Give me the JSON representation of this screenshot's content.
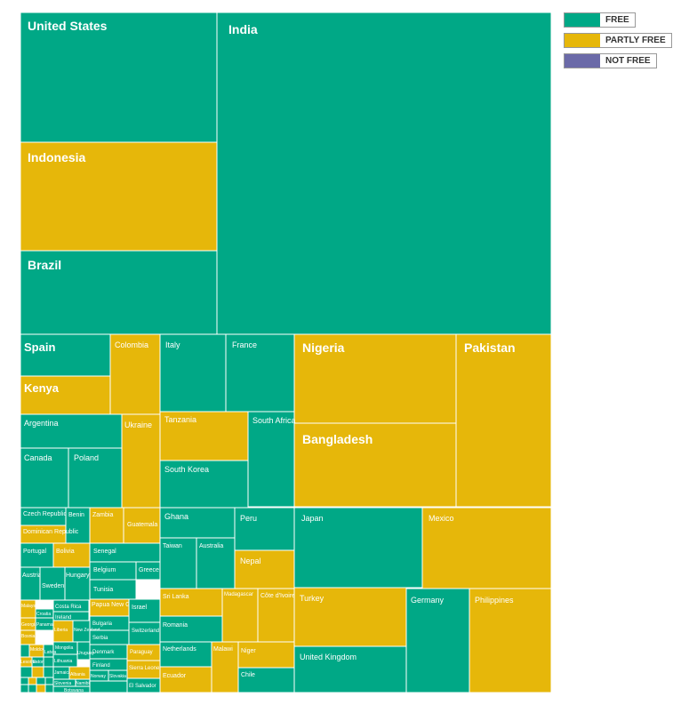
{
  "chart_data": {
    "type": "treemap",
    "title": "",
    "legend": [
      {
        "status": "free",
        "label": "FREE",
        "color": "#00a886"
      },
      {
        "status": "partly",
        "label": "PARTLY FREE",
        "color": "#e6b70a"
      },
      {
        "status": "not",
        "label": "NOT FREE",
        "color": "#6b6aa8"
      }
    ],
    "colors": {
      "free": "#00a886",
      "partly": "#e6b70a",
      "not": "#6b6aa8"
    },
    "items": [
      {
        "name": "United States",
        "status": "free"
      },
      {
        "name": "India",
        "status": "free"
      },
      {
        "name": "Indonesia",
        "status": "partly"
      },
      {
        "name": "Brazil",
        "status": "free"
      },
      {
        "name": "Spain",
        "status": "free"
      },
      {
        "name": "Colombia",
        "status": "partly"
      },
      {
        "name": "Italy",
        "status": "free"
      },
      {
        "name": "France",
        "status": "free"
      },
      {
        "name": "Nigeria",
        "status": "partly"
      },
      {
        "name": "Pakistan",
        "status": "partly"
      },
      {
        "name": "Kenya",
        "status": "partly"
      },
      {
        "name": "Tanzania",
        "status": "partly"
      },
      {
        "name": "South Africa",
        "status": "free"
      },
      {
        "name": "Argentina",
        "status": "free"
      },
      {
        "name": "Ukraine",
        "status": "partly"
      },
      {
        "name": "Bangladesh",
        "status": "partly"
      },
      {
        "name": "Canada",
        "status": "free"
      },
      {
        "name": "Poland",
        "status": "free"
      },
      {
        "name": "South Korea",
        "status": "free"
      },
      {
        "name": "Czech Republic",
        "status": "free"
      },
      {
        "name": "Benin",
        "status": "free"
      },
      {
        "name": "Zambia",
        "status": "partly"
      },
      {
        "name": "Guatemala",
        "status": "partly"
      },
      {
        "name": "Dominican Republic",
        "status": "partly"
      },
      {
        "name": "Ghana",
        "status": "free"
      },
      {
        "name": "Peru",
        "status": "free"
      },
      {
        "name": "Japan",
        "status": "free"
      },
      {
        "name": "Mexico",
        "status": "partly"
      },
      {
        "name": "Taiwan",
        "status": "free"
      },
      {
        "name": "Australia",
        "status": "free"
      },
      {
        "name": "Nepal",
        "status": "partly"
      },
      {
        "name": "Portugal",
        "status": "free"
      },
      {
        "name": "Bolivia",
        "status": "partly"
      },
      {
        "name": "Senegal",
        "status": "free"
      },
      {
        "name": "Belgium",
        "status": "free"
      },
      {
        "name": "Greece",
        "status": "free"
      },
      {
        "name": "Austria",
        "status": "free"
      },
      {
        "name": "Sweden",
        "status": "free"
      },
      {
        "name": "Hungary",
        "status": "free"
      },
      {
        "name": "Tunisia",
        "status": "free"
      },
      {
        "name": "Sri Lanka",
        "status": "partly"
      },
      {
        "name": "Madagascar",
        "status": "partly"
      },
      {
        "name": "Côte d'Ivoire",
        "status": "partly"
      },
      {
        "name": "Turkey",
        "status": "partly"
      },
      {
        "name": "Germany",
        "status": "free"
      },
      {
        "name": "Philippines",
        "status": "partly"
      },
      {
        "name": "Malaysia",
        "status": "partly"
      },
      {
        "name": "Costa Rica",
        "status": "free"
      },
      {
        "name": "Croatia",
        "status": "free"
      },
      {
        "name": "Ireland",
        "status": "free"
      },
      {
        "name": "Papua New Guinea",
        "status": "partly"
      },
      {
        "name": "Israel",
        "status": "free"
      },
      {
        "name": "Georgia",
        "status": "partly"
      },
      {
        "name": "Panama",
        "status": "free"
      },
      {
        "name": "Bulgaria",
        "status": "free"
      },
      {
        "name": "Switzerland",
        "status": "free"
      },
      {
        "name": "Bosnia-Herz.",
        "status": "partly"
      },
      {
        "name": "Liberia",
        "status": "partly"
      },
      {
        "name": "New Zealand",
        "status": "free"
      },
      {
        "name": "Serbia",
        "status": "free"
      },
      {
        "name": "Romania",
        "status": "free"
      },
      {
        "name": "Mongolia",
        "status": "free"
      },
      {
        "name": "Denmark",
        "status": "free"
      },
      {
        "name": "Paraguay",
        "status": "partly"
      },
      {
        "name": "Moldova",
        "status": "partly"
      },
      {
        "name": "Latvia",
        "status": "free"
      },
      {
        "name": "Jamaica",
        "status": "free"
      },
      {
        "name": "Uruguay",
        "status": "free"
      },
      {
        "name": "Netherlands",
        "status": "free"
      },
      {
        "name": "Malawi",
        "status": "partly"
      },
      {
        "name": "Niger",
        "status": "partly"
      },
      {
        "name": "United Kingdom",
        "status": "free"
      },
      {
        "name": "Lithuania",
        "status": "free"
      },
      {
        "name": "Estonia",
        "status": "free"
      },
      {
        "name": "Lesotho",
        "status": "partly"
      },
      {
        "name": "Finland",
        "status": "free"
      },
      {
        "name": "Sierra Leone",
        "status": "partly"
      },
      {
        "name": "Albania",
        "status": "partly"
      },
      {
        "name": "Norway",
        "status": "free"
      },
      {
        "name": "Slovakia",
        "status": "free"
      },
      {
        "name": "Ecuador",
        "status": "partly"
      },
      {
        "name": "Chile",
        "status": "free"
      },
      {
        "name": "Slovenia",
        "status": "free"
      },
      {
        "name": "Namibia",
        "status": "free"
      },
      {
        "name": "El Salvador",
        "status": "free"
      },
      {
        "name": "Botswana",
        "status": "free"
      },
      {
        "name": "",
        "status": "free"
      },
      {
        "name": "",
        "status": "partly"
      },
      {
        "name": "",
        "status": "free"
      },
      {
        "name": "",
        "status": "free"
      },
      {
        "name": "",
        "status": "partly"
      },
      {
        "name": "",
        "status": "free"
      },
      {
        "name": "",
        "status": "free"
      },
      {
        "name": "",
        "status": "free"
      },
      {
        "name": "",
        "status": "free"
      },
      {
        "name": "",
        "status": "partly"
      },
      {
        "name": "",
        "status": "free"
      },
      {
        "name": "",
        "status": "free"
      },
      {
        "name": "",
        "status": "free"
      },
      {
        "name": "",
        "status": "free"
      }
    ]
  }
}
